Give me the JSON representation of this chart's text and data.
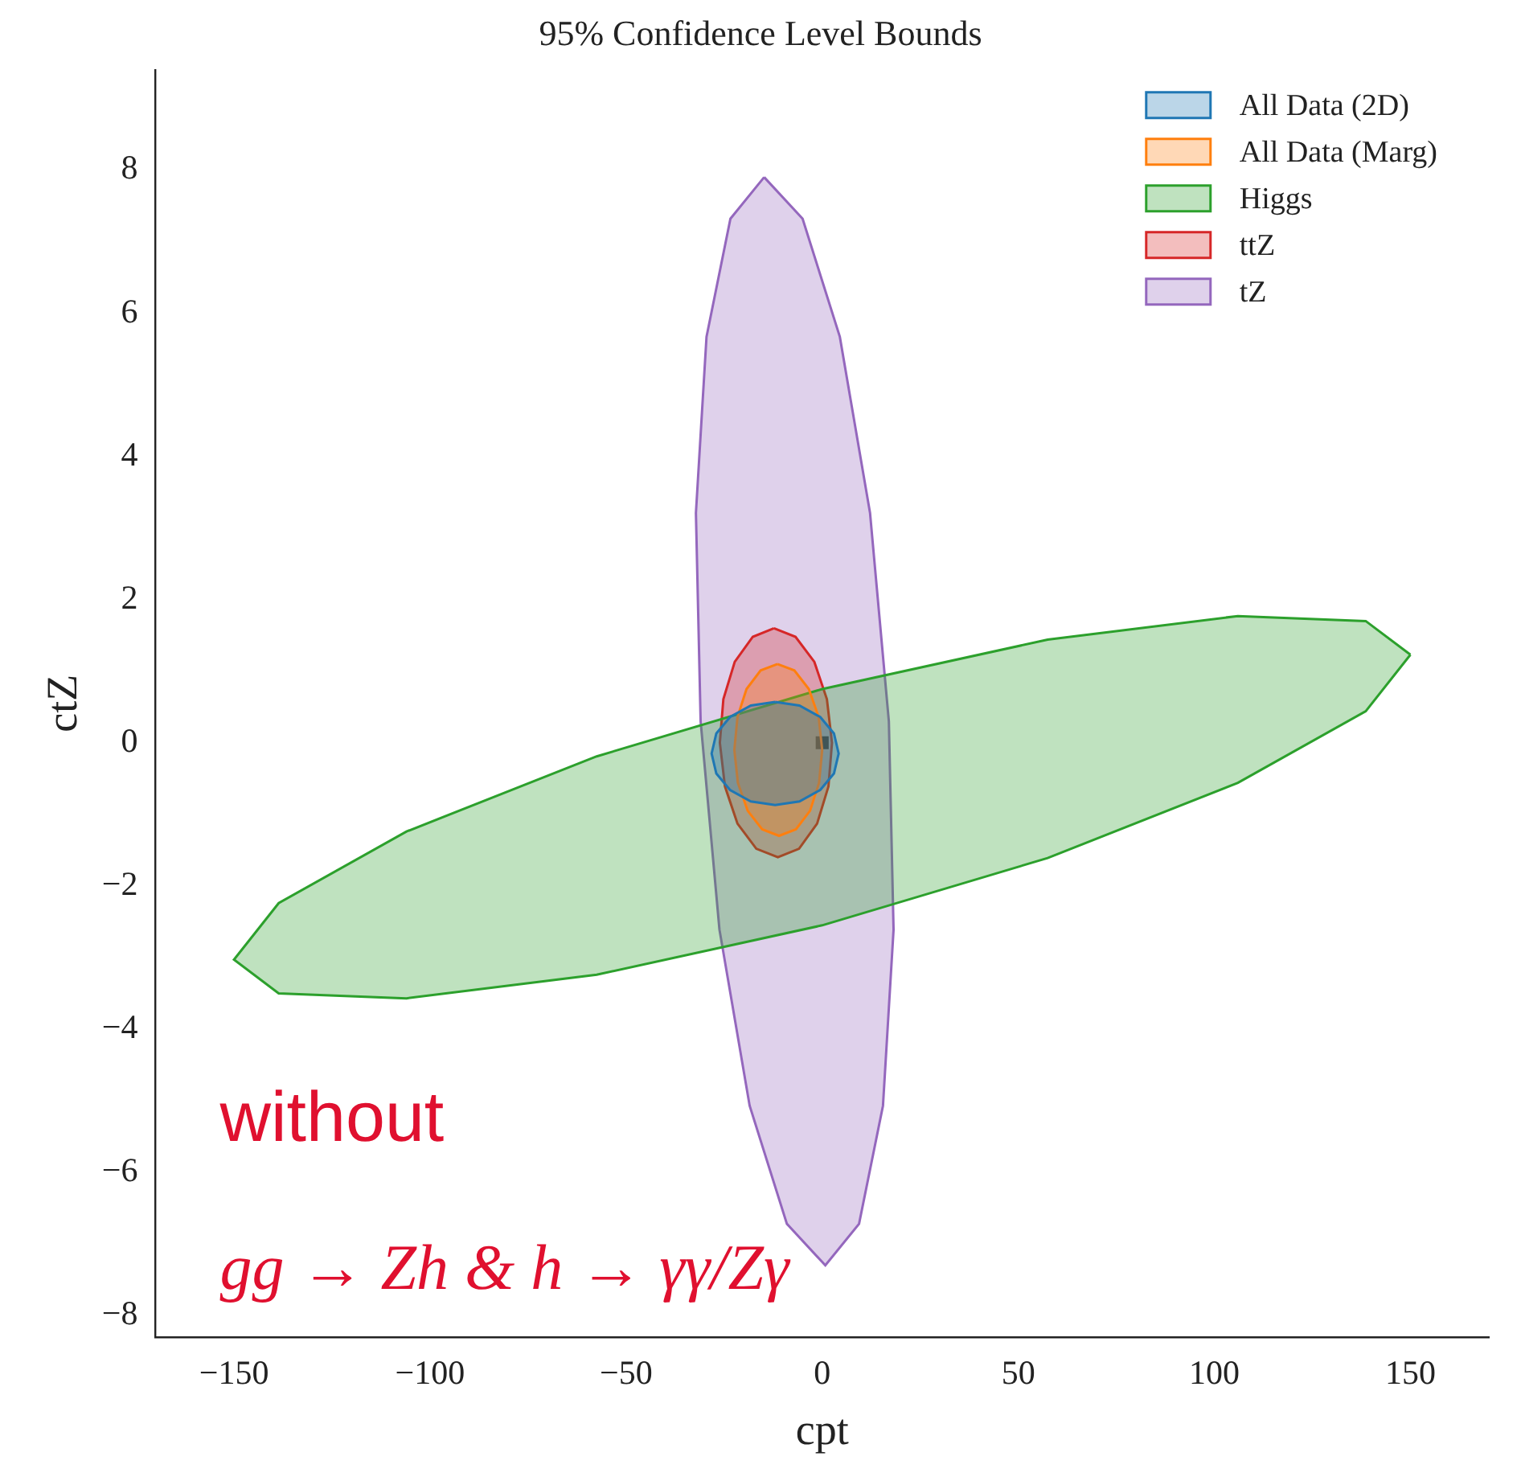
{
  "chart_data": {
    "type": "area",
    "title": "95% Confidence Level Bounds",
    "xlabel": "cpt",
    "ylabel": "ctZ",
    "xlim": [
      -170,
      170
    ],
    "ylim": [
      -8.3,
      9.4
    ],
    "xticks": [
      -150,
      -100,
      -50,
      0,
      50,
      100,
      150
    ],
    "yticks": [
      -8,
      -6,
      -4,
      -2,
      0,
      2,
      4,
      6,
      8
    ],
    "grid": false,
    "legend": "top right",
    "annotations": [
      "without",
      "gg → Zh & h → γγ/Zγ"
    ],
    "series": [
      {
        "name": "All Data (2D)",
        "color": "#1f77b4",
        "x": [
          -12,
          -5.8,
          -0.5,
          3.0,
          4.2,
          3.0,
          -0.5,
          -5.8,
          -12,
          -18.2,
          -23.5,
          -27.0,
          -28.2,
          -27.0,
          -23.5,
          -18.2,
          -12
        ],
        "values": [
          0.57,
          0.52,
          0.36,
          0.13,
          -0.15,
          -0.43,
          -0.66,
          -0.82,
          -0.87,
          -0.82,
          -0.66,
          -0.43,
          -0.15,
          0.13,
          0.36,
          0.52,
          0.57
        ]
      },
      {
        "name": "All Data (Marg)",
        "color": "#ff7f0e",
        "x": [
          -11.4,
          -7.1,
          -3.4,
          -0.9,
          0,
          -0.8,
          -3.1,
          -6.7,
          -11.0,
          -15.3,
          -19.0,
          -21.5,
          -22.4,
          -21.6,
          -19.3,
          -15.7,
          -11.4
        ],
        "values": [
          1.1,
          1.01,
          0.75,
          0.36,
          -0.1,
          -0.56,
          -0.95,
          -1.21,
          -1.3,
          -1.21,
          -0.95,
          -0.56,
          -0.1,
          0.36,
          0.75,
          1.01,
          1.1
        ]
      },
      {
        "name": "Higgs",
        "color": "#2ca02c",
        "x": [
          150,
          138.6,
          106,
          57.5,
          0,
          -57.5,
          -106,
          -138.6,
          -150,
          -138.6,
          -106,
          -57.5,
          0,
          57.5,
          106,
          138.6,
          150
        ],
        "values": [
          1.23,
          1.7,
          1.77,
          1.44,
          0.75,
          -0.19,
          -1.24,
          -2.24,
          -3.03,
          -3.5,
          -3.57,
          -3.24,
          -2.55,
          -1.61,
          -0.56,
          0.44,
          1.23
        ]
      },
      {
        "name": "ttZ",
        "color": "#d62728",
        "x": [
          -12.3,
          -6.8,
          -2.0,
          1.2,
          2.5,
          1.6,
          -1.3,
          -5.9,
          -11.3,
          -16.8,
          -21.6,
          -24.8,
          -26.1,
          -25.2,
          -22.3,
          -17.7,
          -12.3
        ],
        "values": [
          1.6,
          1.48,
          1.13,
          0.61,
          0,
          -0.61,
          -1.13,
          -1.48,
          -1.6,
          -1.48,
          -1.13,
          -0.61,
          0,
          0.61,
          1.13,
          1.48,
          1.6
        ]
      },
      {
        "name": "tZ",
        "color": "#9467bd",
        "x": [
          -14.8,
          -5.0,
          4.5,
          12.2,
          17,
          18.2,
          15.5,
          9.4,
          0.8,
          -9.0,
          -18.5,
          -26.2,
          -31,
          -32.2,
          -29.5,
          -23.4,
          -14.8
        ],
        "values": [
          7.9,
          7.32,
          5.67,
          3.21,
          0.3,
          -2.61,
          -5.07,
          -6.72,
          -7.3,
          -6.72,
          -5.07,
          -2.61,
          0.3,
          3.21,
          5.67,
          7.32,
          7.9
        ]
      },
      {
        "type": "scatter",
        "color": "#000000",
        "marker": "square",
        "x": [
          0
        ],
        "values": [
          0
        ]
      }
    ]
  }
}
